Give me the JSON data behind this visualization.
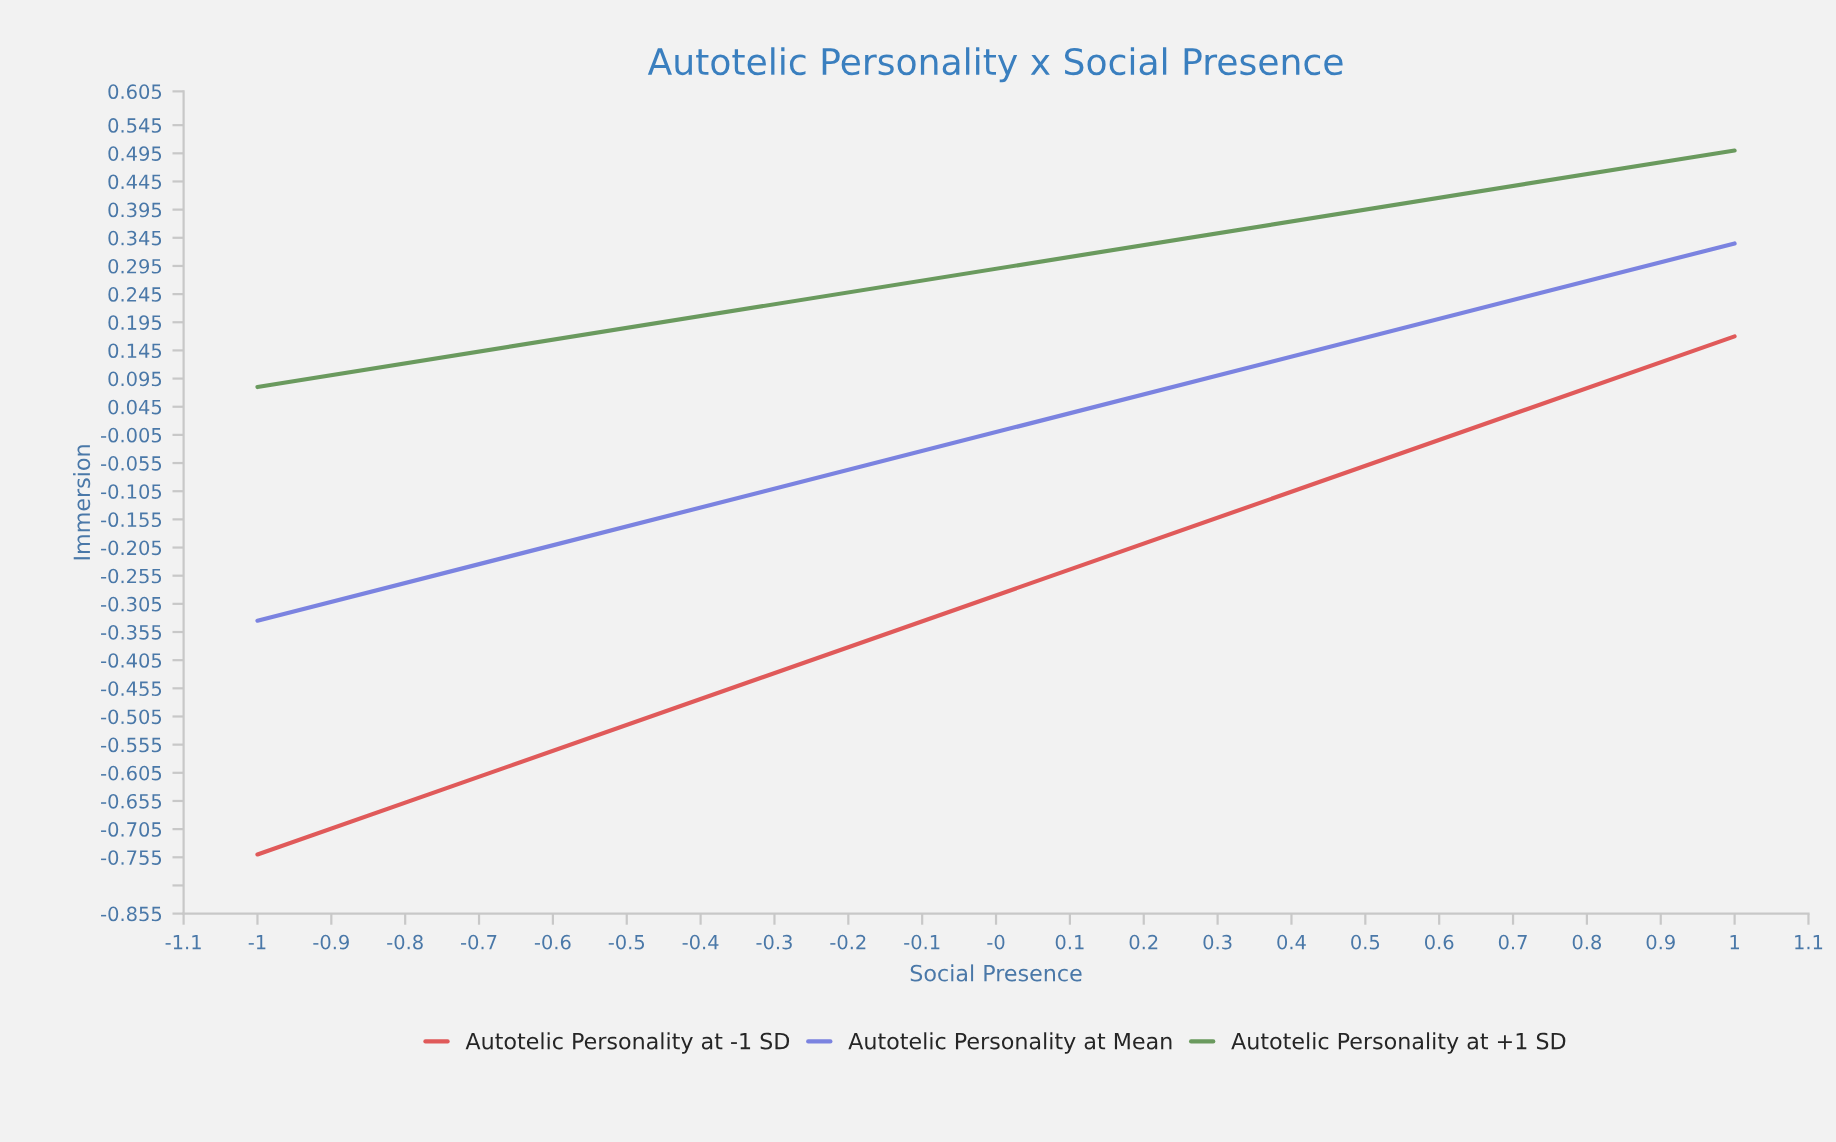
{
  "chart_data": {
    "type": "line",
    "title": "Autotelic Personality x Social Presence",
    "xlabel": "Social Presence",
    "ylabel": "Immersion",
    "x": [
      -1,
      1
    ],
    "series": [
      {
        "name": "Autotelic Personality at -1 SD",
        "color": "#e05a5a",
        "values": [
          -0.75,
          0.17
        ]
      },
      {
        "name": "Autotelic Personality at Mean",
        "color": "#7b83e0",
        "values": [
          -0.335,
          0.335
        ]
      },
      {
        "name": "Autotelic Personality at +1 SD",
        "color": "#6a9a5e",
        "values": [
          0.08,
          0.5
        ]
      }
    ],
    "xlim": [
      -1.1,
      1.1
    ],
    "xticks": [
      -1.1,
      -1,
      -0.9,
      -0.8,
      -0.7,
      -0.6,
      -0.5,
      -0.4,
      -0.3,
      -0.2,
      -0.1,
      {
        "value": 0,
        "label": "-0"
      },
      0.1,
      0.2,
      0.3,
      0.4,
      0.5,
      0.6,
      0.7,
      0.8,
      0.9,
      1,
      1.1
    ],
    "ylim": [
      -0.855,
      0.605
    ],
    "yticks": [
      0.605,
      0.545,
      0.495,
      0.445,
      0.395,
      0.345,
      0.295,
      0.245,
      0.195,
      0.145,
      0.095,
      0.045,
      -0.005,
      -0.055,
      -0.105,
      -0.155,
      -0.205,
      -0.255,
      -0.305,
      -0.355,
      -0.405,
      -0.455,
      -0.505,
      -0.555,
      -0.605,
      -0.655,
      -0.705,
      -0.755,
      {
        "value": -0.805,
        "label": null
      },
      -0.855
    ],
    "grid": false,
    "legend": "bottom",
    "marker": "none",
    "line_style": "solid"
  }
}
